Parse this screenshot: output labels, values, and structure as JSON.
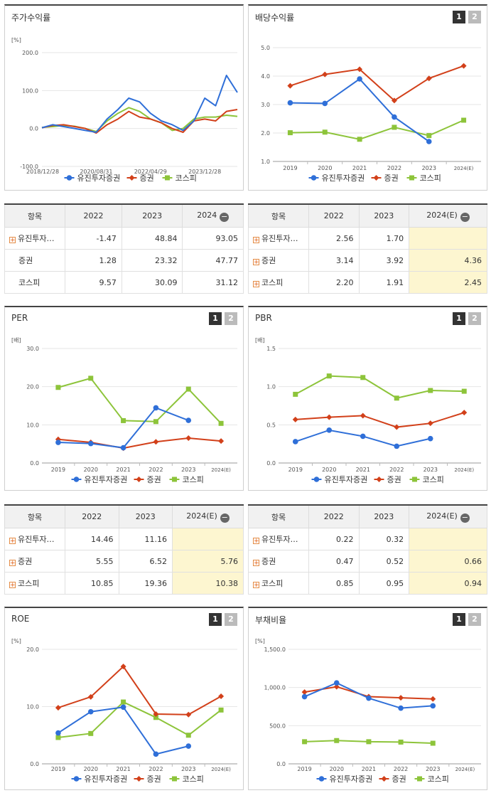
{
  "colors": {
    "company": "#2f6fd8",
    "sector": "#d2401a",
    "kospi": "#8dc43a"
  },
  "legend": [
    "유진투자증권",
    "증권",
    "코스피"
  ],
  "panels": {
    "stock": {
      "title": "주가수익률",
      "unit": "[%]"
    },
    "dividend": {
      "title": "배당수익률",
      "btn1": "1",
      "btn2": "2"
    },
    "per": {
      "title": "PER",
      "unit": "[배]",
      "btn1": "1",
      "btn2": "2"
    },
    "pbr": {
      "title": "PBR",
      "unit": "[배]",
      "btn1": "1",
      "btn2": "2"
    },
    "roe": {
      "title": "ROE",
      "unit": "[%]",
      "btn1": "1",
      "btn2": "2"
    },
    "debt": {
      "title": "부채비율",
      "unit": "[%]",
      "btn1": "1",
      "btn2": "2"
    }
  },
  "tables": {
    "stock": {
      "head": [
        "항목",
        "2022",
        "2023",
        "2024"
      ],
      "rows": [
        {
          "label": "유진투자…",
          "plus": true,
          "values": [
            "-1.47",
            "48.84",
            "93.05"
          ]
        },
        {
          "label": "증권",
          "plus": false,
          "values": [
            "1.28",
            "23.32",
            "47.77"
          ]
        },
        {
          "label": "코스피",
          "plus": false,
          "values": [
            "9.57",
            "30.09",
            "31.12"
          ]
        }
      ]
    },
    "dividend": {
      "head": [
        "항목",
        "2022",
        "2023",
        "2024(E)"
      ],
      "rows": [
        {
          "label": "유진투자…",
          "plus": true,
          "values": [
            "2.56",
            "1.70",
            ""
          ]
        },
        {
          "label": "증권",
          "plus": true,
          "values": [
            "3.14",
            "3.92",
            "4.36"
          ]
        },
        {
          "label": "코스피",
          "plus": true,
          "values": [
            "2.20",
            "1.91",
            "2.45"
          ]
        }
      ]
    },
    "per": {
      "head": [
        "항목",
        "2022",
        "2023",
        "2024(E)"
      ],
      "rows": [
        {
          "label": "유진투자…",
          "plus": true,
          "values": [
            "14.46",
            "11.16",
            ""
          ]
        },
        {
          "label": "증권",
          "plus": true,
          "values": [
            "5.55",
            "6.52",
            "5.76"
          ]
        },
        {
          "label": "코스피",
          "plus": true,
          "values": [
            "10.85",
            "19.36",
            "10.38"
          ]
        }
      ]
    },
    "pbr": {
      "head": [
        "항목",
        "2022",
        "2023",
        "2024(E)"
      ],
      "rows": [
        {
          "label": "유진투자…",
          "plus": true,
          "values": [
            "0.22",
            "0.32",
            ""
          ]
        },
        {
          "label": "증권",
          "plus": true,
          "values": [
            "0.47",
            "0.52",
            "0.66"
          ]
        },
        {
          "label": "코스피",
          "plus": true,
          "values": [
            "0.85",
            "0.95",
            "0.94"
          ]
        }
      ]
    }
  },
  "chart_data": [
    {
      "id": "stock",
      "type": "line",
      "x": [
        "2018/12/28",
        "2019/04",
        "2019/08",
        "2019/12",
        "2020/04",
        "2020/08/31",
        "2020/12",
        "2021/04",
        "2021/08",
        "2021/12",
        "2022/04/29",
        "2022/08",
        "2022/12",
        "2023/04",
        "2023/08",
        "2023/12/28",
        "2024/04",
        "2024/08",
        "2024/12"
      ],
      "xticks": [
        "2018/12/28",
        "2020/08/31",
        "2022/04/29",
        "2023/12/28"
      ],
      "yticks": [
        "200.0",
        "100.0",
        "0.0",
        "-100.0"
      ],
      "ylim": [
        -100,
        200
      ],
      "series": [
        {
          "name": "유진투자증권",
          "values": [
            2,
            10,
            5,
            0,
            -5,
            -10,
            25,
            50,
            80,
            70,
            40,
            20,
            10,
            -5,
            20,
            80,
            60,
            140,
            95
          ]
        },
        {
          "name": "증권",
          "values": [
            2,
            8,
            10,
            5,
            0,
            -12,
            10,
            25,
            45,
            30,
            25,
            15,
            0,
            -10,
            20,
            25,
            20,
            45,
            50
          ]
        },
        {
          "name": "코스피",
          "values": [
            3,
            5,
            8,
            6,
            0,
            -8,
            20,
            40,
            55,
            45,
            25,
            15,
            -5,
            0,
            25,
            30,
            30,
            35,
            32
          ]
        }
      ]
    },
    {
      "id": "dividend",
      "type": "line",
      "categories": [
        "2019",
        "2020",
        "2021",
        "2022",
        "2023",
        "2024(E)"
      ],
      "yticks": [
        "5.0",
        "4.0",
        "3.0",
        "2.0",
        "1.0"
      ],
      "ylim": [
        1,
        5
      ],
      "series": [
        {
          "name": "유진투자증권",
          "values": [
            3.06,
            3.04,
            3.9,
            2.56,
            1.7,
            null
          ]
        },
        {
          "name": "증권",
          "values": [
            3.66,
            4.06,
            4.24,
            3.14,
            3.92,
            4.36
          ]
        },
        {
          "name": "코스피",
          "values": [
            2.01,
            2.03,
            1.78,
            2.2,
            1.91,
            2.45
          ]
        }
      ]
    },
    {
      "id": "per",
      "type": "line",
      "categories": [
        "2019",
        "2020",
        "2021",
        "2022",
        "2023",
        "2024(E)"
      ],
      "yticks": [
        "30.0",
        "20.0",
        "10.0",
        "0.0"
      ],
      "ylim": [
        0,
        30
      ],
      "series": [
        {
          "name": "유진투자증권",
          "values": [
            5.4,
            5.1,
            4.0,
            14.46,
            11.16,
            null
          ]
        },
        {
          "name": "증권",
          "values": [
            6.2,
            5.4,
            3.9,
            5.55,
            6.52,
            5.76
          ]
        },
        {
          "name": "코스피",
          "values": [
            19.8,
            22.2,
            11.1,
            10.85,
            19.36,
            10.38
          ]
        }
      ]
    },
    {
      "id": "pbr",
      "type": "line",
      "categories": [
        "2019",
        "2020",
        "2021",
        "2022",
        "2023",
        "2024(E)"
      ],
      "yticks": [
        "1.5",
        "1.0",
        "0.5",
        "0.0"
      ],
      "ylim": [
        0,
        1.5
      ],
      "series": [
        {
          "name": "유진투자증권",
          "values": [
            0.28,
            0.43,
            0.35,
            0.22,
            0.32,
            null
          ]
        },
        {
          "name": "증권",
          "values": [
            0.57,
            0.6,
            0.62,
            0.47,
            0.52,
            0.66
          ]
        },
        {
          "name": "코스피",
          "values": [
            0.9,
            1.14,
            1.12,
            0.85,
            0.95,
            0.94
          ]
        }
      ]
    },
    {
      "id": "roe",
      "type": "line",
      "categories": [
        "2019",
        "2020",
        "2021",
        "2022",
        "2023",
        "2024(E)"
      ],
      "yticks": [
        "20.0",
        "10.0",
        "0.0"
      ],
      "ylim": [
        0,
        20
      ],
      "series": [
        {
          "name": "유진투자증권",
          "values": [
            5.4,
            9.1,
            9.9,
            1.7,
            3.1,
            null
          ]
        },
        {
          "name": "증권",
          "values": [
            9.8,
            11.7,
            17.0,
            8.7,
            8.6,
            11.8
          ]
        },
        {
          "name": "코스피",
          "values": [
            4.6,
            5.3,
            10.8,
            8.1,
            5.0,
            9.4
          ]
        }
      ]
    },
    {
      "id": "debt",
      "type": "line",
      "categories": [
        "2019",
        "2020",
        "2021",
        "2022",
        "2023",
        "2024(E)"
      ],
      "yticks": [
        "1,500.0",
        "1,000.0",
        "500.0",
        "0.0"
      ],
      "ylim": [
        0,
        1500
      ],
      "series": [
        {
          "name": "유진투자증권",
          "values": [
            880,
            1060,
            860,
            730,
            760,
            null
          ]
        },
        {
          "name": "증권",
          "values": [
            940,
            1010,
            880,
            865,
            850,
            null
          ]
        },
        {
          "name": "코스피",
          "values": [
            290,
            305,
            290,
            285,
            270,
            null
          ]
        }
      ]
    }
  ]
}
